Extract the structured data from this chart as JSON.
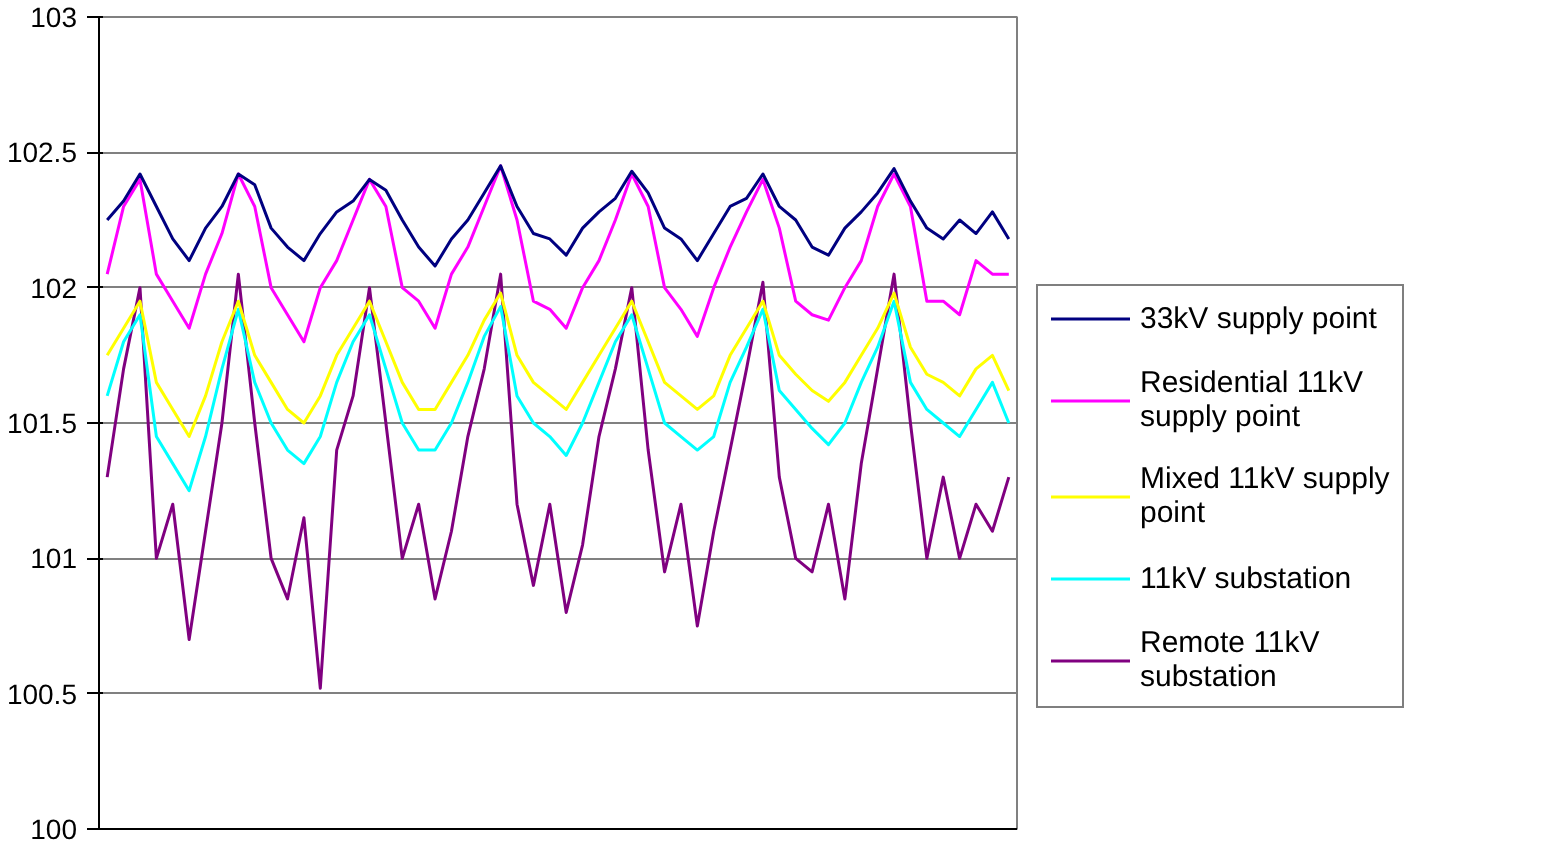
{
  "chart_data": {
    "type": "line",
    "categories": [
      null,
      null,
      null,
      null,
      null,
      null,
      null,
      null,
      null,
      null,
      null,
      null,
      null,
      null,
      null,
      null,
      null,
      null,
      null,
      null,
      null,
      null,
      null,
      null,
      null,
      null,
      null,
      null,
      null,
      null,
      null,
      null,
      null,
      null,
      null,
      null,
      null,
      null,
      null,
      null,
      null,
      null,
      null,
      null,
      null,
      null,
      null,
      null,
      null,
      null,
      null,
      null,
      null,
      null,
      null,
      null
    ],
    "ylim": [
      100,
      103
    ],
    "yticks": [
      100,
      100.5,
      101,
      101.5,
      102,
      102.5,
      103
    ],
    "grid": "y",
    "legend": "right",
    "marker": "none",
    "line_style": "solid",
    "series": [
      {
        "name": "33kV supply point",
        "color": "#000080",
        "values": [
          102.25,
          102.32,
          102.42,
          102.3,
          102.18,
          102.1,
          102.22,
          102.3,
          102.42,
          102.38,
          102.22,
          102.15,
          102.1,
          102.2,
          102.28,
          102.32,
          102.4,
          102.36,
          102.25,
          102.15,
          102.08,
          102.18,
          102.25,
          102.35,
          102.45,
          102.3,
          102.2,
          102.18,
          102.12,
          102.22,
          102.28,
          102.33,
          102.43,
          102.35,
          102.22,
          102.18,
          102.1,
          102.2,
          102.3,
          102.33,
          102.42,
          102.3,
          102.25,
          102.15,
          102.12,
          102.22,
          102.28,
          102.35,
          102.44,
          102.32,
          102.22,
          102.18,
          102.25,
          102.2,
          102.28,
          102.18
        ]
      },
      {
        "name": "Residential 11kV supply point",
        "color": "#ff00ff",
        "values": [
          102.05,
          102.3,
          102.4,
          102.05,
          101.95,
          101.85,
          102.05,
          102.2,
          102.42,
          102.3,
          102.0,
          101.9,
          101.8,
          102.0,
          102.1,
          102.25,
          102.4,
          102.3,
          102.0,
          101.95,
          101.85,
          102.05,
          102.15,
          102.3,
          102.45,
          102.25,
          101.95,
          101.92,
          101.85,
          102.0,
          102.1,
          102.25,
          102.42,
          102.3,
          102.0,
          101.92,
          101.82,
          102.0,
          102.15,
          102.28,
          102.4,
          102.22,
          101.95,
          101.9,
          101.88,
          102.0,
          102.1,
          102.3,
          102.42,
          102.3,
          101.95,
          101.95,
          101.9,
          102.1,
          102.05,
          102.05
        ]
      },
      {
        "name": "Mixed 11kV supply point",
        "color": "#ffff00",
        "values": [
          101.75,
          101.85,
          101.95,
          101.65,
          101.55,
          101.45,
          101.6,
          101.8,
          101.95,
          101.75,
          101.65,
          101.55,
          101.5,
          101.6,
          101.75,
          101.85,
          101.95,
          101.8,
          101.65,
          101.55,
          101.55,
          101.65,
          101.75,
          101.88,
          101.98,
          101.75,
          101.65,
          101.6,
          101.55,
          101.65,
          101.75,
          101.85,
          101.95,
          101.8,
          101.65,
          101.6,
          101.55,
          101.6,
          101.75,
          101.85,
          101.95,
          101.75,
          101.68,
          101.62,
          101.58,
          101.65,
          101.75,
          101.85,
          101.98,
          101.78,
          101.68,
          101.65,
          101.6,
          101.7,
          101.75,
          101.62
        ]
      },
      {
        "name": "11kV substation",
        "color": "#00ffff",
        "values": [
          101.6,
          101.8,
          101.9,
          101.45,
          101.35,
          101.25,
          101.45,
          101.7,
          101.92,
          101.65,
          101.5,
          101.4,
          101.35,
          101.45,
          101.65,
          101.8,
          101.9,
          101.7,
          101.5,
          101.4,
          101.4,
          101.5,
          101.65,
          101.82,
          101.93,
          101.6,
          101.5,
          101.45,
          101.38,
          101.5,
          101.65,
          101.8,
          101.9,
          101.7,
          101.5,
          101.45,
          101.4,
          101.45,
          101.65,
          101.78,
          101.92,
          101.62,
          101.55,
          101.48,
          101.42,
          101.5,
          101.65,
          101.78,
          101.95,
          101.65,
          101.55,
          101.5,
          101.45,
          101.55,
          101.65,
          101.5
        ]
      },
      {
        "name": "Remote 11kV substation",
        "color": "#800080",
        "values": [
          101.3,
          101.7,
          102.0,
          101.0,
          101.2,
          100.7,
          101.1,
          101.5,
          102.05,
          101.5,
          101.0,
          100.85,
          101.15,
          100.52,
          101.4,
          101.6,
          102.0,
          101.5,
          101.0,
          101.2,
          100.85,
          101.1,
          101.45,
          101.7,
          102.05,
          101.2,
          100.9,
          101.2,
          100.8,
          101.05,
          101.45,
          101.7,
          102.0,
          101.4,
          100.95,
          101.2,
          100.75,
          101.1,
          101.4,
          101.7,
          102.02,
          101.3,
          101.0,
          100.95,
          101.2,
          100.85,
          101.35,
          101.7,
          102.05,
          101.5,
          101.0,
          101.3,
          101.0,
          101.2,
          101.1,
          101.3
        ]
      }
    ]
  }
}
